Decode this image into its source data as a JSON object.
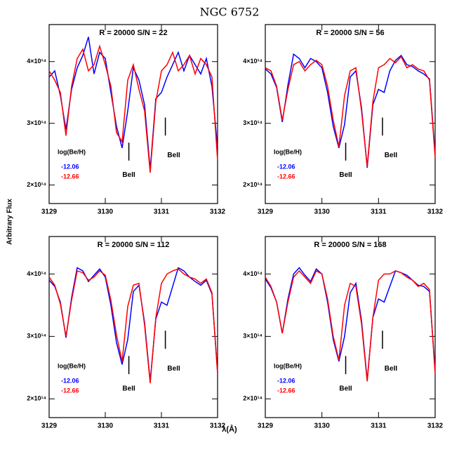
{
  "figure": {
    "title": "NGC 6752",
    "xlabel": "λ(Å)",
    "ylabel": "Arbitrary Flux"
  },
  "chart_data": [
    {
      "type": "line",
      "title": "R = 20000 S/N = 22",
      "legend_title": "log(Be/H)",
      "x": [
        3129,
        3129.1,
        3129.2,
        3129.3,
        3129.4,
        3129.5,
        3129.6,
        3129.7,
        3129.8,
        3129.9,
        3130,
        3130.1,
        3130.2,
        3130.3,
        3130.4,
        3130.5,
        3130.6,
        3130.7,
        3130.8,
        3130.9,
        3131,
        3131.1,
        3131.2,
        3131.3,
        3131.4,
        3131.5,
        3131.6,
        3131.7,
        3131.8,
        3131.9,
        3132
      ],
      "series": [
        {
          "name": "-12.06",
          "color": "#0000ff",
          "values": [
            375000000000000.0,
            385000000000000.0,
            345000000000000.0,
            290000000000000.0,
            355000000000000.0,
            390000000000000.0,
            410000000000000.0,
            440000000000000.0,
            380000000000000.0,
            415000000000000.0,
            405000000000000.0,
            350000000000000.0,
            295000000000000.0,
            260000000000000.0,
            320000000000000.0,
            390000000000000.0,
            370000000000000.0,
            330000000000000.0,
            225000000000000.0,
            340000000000000.0,
            350000000000000.0,
            375000000000000.0,
            395000000000000.0,
            415000000000000.0,
            385000000000000.0,
            410000000000000.0,
            395000000000000.0,
            380000000000000.0,
            405000000000000.0,
            360000000000000.0,
            260000000000000.0
          ]
        },
        {
          "name": "-12.66",
          "color": "#ff0000",
          "values": [
            385000000000000.0,
            370000000000000.0,
            350000000000000.0,
            280000000000000.0,
            360000000000000.0,
            405000000000000.0,
            420000000000000.0,
            385000000000000.0,
            395000000000000.0,
            425000000000000.0,
            395000000000000.0,
            360000000000000.0,
            285000000000000.0,
            270000000000000.0,
            370000000000000.0,
            395000000000000.0,
            355000000000000.0,
            320000000000000.0,
            220000000000000.0,
            335000000000000.0,
            385000000000000.0,
            395000000000000.0,
            415000000000000.0,
            385000000000000.0,
            395000000000000.0,
            410000000000000.0,
            380000000000000.0,
            405000000000000.0,
            395000000000000.0,
            375000000000000.0,
            240000000000000.0
          ]
        }
      ],
      "annotations": [
        {
          "text": "BeII",
          "x": 3130.42
        },
        {
          "text": "BeII",
          "x": 3131.07
        }
      ],
      "xlim": [
        3129,
        3132
      ],
      "xticks": [
        3129,
        3130,
        3131,
        3132
      ],
      "ylim": [
        170000000000000.0,
        460000000000000.0
      ],
      "yticks": [
        {
          "value": 200000000000000.0,
          "label": "2×10¹⁴"
        },
        {
          "value": 300000000000000.0,
          "label": "3×10¹⁴"
        },
        {
          "value": 400000000000000.0,
          "label": "4×10¹⁴"
        }
      ]
    },
    {
      "type": "line",
      "title": "R = 20000 S/N = 56",
      "legend_title": "log(Be/H)",
      "x": [
        3129,
        3129.1,
        3129.2,
        3129.3,
        3129.4,
        3129.5,
        3129.6,
        3129.7,
        3129.8,
        3129.9,
        3130,
        3130.1,
        3130.2,
        3130.3,
        3130.4,
        3130.5,
        3130.6,
        3130.7,
        3130.8,
        3130.9,
        3131,
        3131.1,
        3131.2,
        3131.3,
        3131.4,
        3131.5,
        3131.6,
        3131.7,
        3131.8,
        3131.9,
        3132
      ],
      "series": [
        {
          "name": "-12.06",
          "color": "#0000ff",
          "values": [
            388000000000000.0,
            380000000000000.0,
            358000000000000.0,
            302000000000000.0,
            362000000000000.0,
            412000000000000.0,
            405000000000000.0,
            390000000000000.0,
            405000000000000.0,
            400000000000000.0,
            390000000000000.0,
            350000000000000.0,
            295000000000000.0,
            260000000000000.0,
            298000000000000.0,
            375000000000000.0,
            385000000000000.0,
            325000000000000.0,
            228000000000000.0,
            330000000000000.0,
            355000000000000.0,
            350000000000000.0,
            385000000000000.0,
            402000000000000.0,
            410000000000000.0,
            395000000000000.0,
            392000000000000.0,
            385000000000000.0,
            380000000000000.0,
            372000000000000.0,
            250000000000000.0
          ]
        },
        {
          "name": "-12.66",
          "color": "#ff0000",
          "values": [
            390000000000000.0,
            385000000000000.0,
            360000000000000.0,
            305000000000000.0,
            355000000000000.0,
            395000000000000.0,
            400000000000000.0,
            385000000000000.0,
            395000000000000.0,
            402000000000000.0,
            395000000000000.0,
            360000000000000.0,
            305000000000000.0,
            262000000000000.0,
            345000000000000.0,
            385000000000000.0,
            390000000000000.0,
            320000000000000.0,
            230000000000000.0,
            335000000000000.0,
            390000000000000.0,
            395000000000000.0,
            405000000000000.0,
            398000000000000.0,
            408000000000000.0,
            390000000000000.0,
            395000000000000.0,
            388000000000000.0,
            385000000000000.0,
            370000000000000.0,
            245000000000000.0
          ]
        }
      ],
      "annotations": [
        {
          "text": "BeII",
          "x": 3130.42
        },
        {
          "text": "BeII",
          "x": 3131.07
        }
      ],
      "xlim": [
        3129,
        3132
      ],
      "xticks": [
        3129,
        3130,
        3131,
        3132
      ],
      "ylim": [
        170000000000000.0,
        460000000000000.0
      ],
      "yticks": [
        {
          "value": 200000000000000.0,
          "label": "2×10¹⁴"
        },
        {
          "value": 300000000000000.0,
          "label": "3×10¹⁴"
        },
        {
          "value": 400000000000000.0,
          "label": "4×10¹⁴"
        }
      ]
    },
    {
      "type": "line",
      "title": "R = 20000 S/N = 112",
      "legend_title": "log(Be/H)",
      "x": [
        3129,
        3129.1,
        3129.2,
        3129.3,
        3129.4,
        3129.5,
        3129.6,
        3129.7,
        3129.8,
        3129.9,
        3130,
        3130.1,
        3130.2,
        3130.3,
        3130.4,
        3130.5,
        3130.6,
        3130.7,
        3130.8,
        3130.9,
        3131,
        3131.1,
        3131.2,
        3131.3,
        3131.4,
        3131.5,
        3131.6,
        3131.7,
        3131.8,
        3131.9,
        3132
      ],
      "series": [
        {
          "name": "-12.06",
          "color": "#0000ff",
          "values": [
            390000000000000.0,
            380000000000000.0,
            355000000000000.0,
            298000000000000.0,
            362000000000000.0,
            410000000000000.0,
            405000000000000.0,
            388000000000000.0,
            398000000000000.0,
            408000000000000.0,
            395000000000000.0,
            350000000000000.0,
            290000000000000.0,
            255000000000000.0,
            295000000000000.0,
            372000000000000.0,
            382000000000000.0,
            322000000000000.0,
            228000000000000.0,
            328000000000000.0,
            355000000000000.0,
            350000000000000.0,
            380000000000000.0,
            410000000000000.0,
            405000000000000.0,
            395000000000000.0,
            388000000000000.0,
            382000000000000.0,
            390000000000000.0,
            368000000000000.0,
            242000000000000.0
          ]
        },
        {
          "name": "-12.66",
          "color": "#ff0000",
          "values": [
            395000000000000.0,
            382000000000000.0,
            352000000000000.0,
            300000000000000.0,
            358000000000000.0,
            405000000000000.0,
            402000000000000.0,
            390000000000000.0,
            395000000000000.0,
            405000000000000.0,
            398000000000000.0,
            358000000000000.0,
            302000000000000.0,
            260000000000000.0,
            348000000000000.0,
            382000000000000.0,
            385000000000000.0,
            318000000000000.0,
            225000000000000.0,
            330000000000000.0,
            385000000000000.0,
            400000000000000.0,
            405000000000000.0,
            408000000000000.0,
            400000000000000.0,
            395000000000000.0,
            392000000000000.0,
            385000000000000.0,
            392000000000000.0,
            370000000000000.0,
            240000000000000.0
          ]
        }
      ],
      "annotations": [
        {
          "text": "BeII",
          "x": 3130.42
        },
        {
          "text": "BeII",
          "x": 3131.07
        }
      ],
      "xlim": [
        3129,
        3132
      ],
      "xticks": [
        3129,
        3130,
        3131,
        3132
      ],
      "ylim": [
        170000000000000.0,
        460000000000000.0
      ],
      "yticks": [
        {
          "value": 200000000000000.0,
          "label": "2×10¹⁴"
        },
        {
          "value": 300000000000000.0,
          "label": "3×10¹⁴"
        },
        {
          "value": 400000000000000.0,
          "label": "4×10¹⁴"
        }
      ]
    },
    {
      "type": "line",
      "title": "R = 20000 S/N = 168",
      "legend_title": "log(Be/H)",
      "x": [
        3129,
        3129.1,
        3129.2,
        3129.3,
        3129.4,
        3129.5,
        3129.6,
        3129.7,
        3129.8,
        3129.9,
        3130,
        3130.1,
        3130.2,
        3130.3,
        3130.4,
        3130.5,
        3130.6,
        3130.7,
        3130.8,
        3130.9,
        3131,
        3131.1,
        3131.2,
        3131.3,
        3131.4,
        3131.5,
        3131.6,
        3131.7,
        3131.8,
        3131.9,
        3132
      ],
      "series": [
        {
          "name": "-12.06",
          "color": "#0000ff",
          "values": [
            392000000000000.0,
            378000000000000.0,
            355000000000000.0,
            305000000000000.0,
            360000000000000.0,
            400000000000000.0,
            410000000000000.0,
            398000000000000.0,
            388000000000000.0,
            408000000000000.0,
            400000000000000.0,
            355000000000000.0,
            295000000000000.0,
            260000000000000.0,
            300000000000000.0,
            370000000000000.0,
            385000000000000.0,
            325000000000000.0,
            230000000000000.0,
            330000000000000.0,
            360000000000000.0,
            355000000000000.0,
            380000000000000.0,
            405000000000000.0,
            402000000000000.0,
            398000000000000.0,
            390000000000000.0,
            382000000000000.0,
            380000000000000.0,
            372000000000000.0,
            245000000000000.0
          ]
        },
        {
          "name": "-12.66",
          "color": "#ff0000",
          "values": [
            395000000000000.0,
            380000000000000.0,
            355000000000000.0,
            305000000000000.0,
            355000000000000.0,
            395000000000000.0,
            405000000000000.0,
            395000000000000.0,
            385000000000000.0,
            405000000000000.0,
            400000000000000.0,
            360000000000000.0,
            300000000000000.0,
            262000000000000.0,
            350000000000000.0,
            385000000000000.0,
            380000000000000.0,
            320000000000000.0,
            228000000000000.0,
            330000000000000.0,
            390000000000000.0,
            400000000000000.0,
            400000000000000.0,
            405000000000000.0,
            402000000000000.0,
            395000000000000.0,
            390000000000000.0,
            380000000000000.0,
            385000000000000.0,
            375000000000000.0,
            240000000000000.0
          ]
        }
      ],
      "annotations": [
        {
          "text": "BeII",
          "x": 3130.42
        },
        {
          "text": "BeII",
          "x": 3131.07
        }
      ],
      "xlim": [
        3129,
        3132
      ],
      "xticks": [
        3129,
        3130,
        3131,
        3132
      ],
      "ylim": [
        170000000000000.0,
        460000000000000.0
      ],
      "yticks": [
        {
          "value": 200000000000000.0,
          "label": "2×10¹⁴"
        },
        {
          "value": 300000000000000.0,
          "label": "3×10¹⁴"
        },
        {
          "value": 400000000000000.0,
          "label": "4×10¹⁴"
        }
      ]
    }
  ]
}
